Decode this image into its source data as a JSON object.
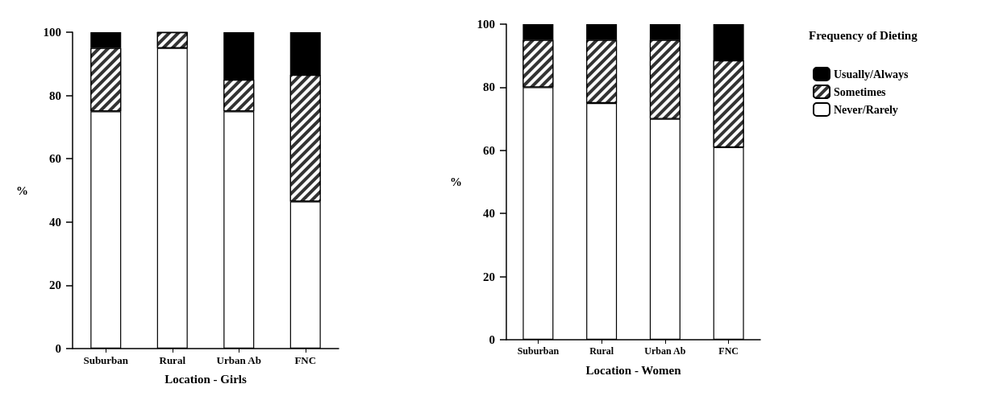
{
  "chart_data": [
    {
      "type": "bar",
      "stacked": true,
      "xlabel": "Location - Girls",
      "ylabel": "%",
      "categories": [
        "Suburban",
        "Rural",
        "Urban Ab",
        "FNC"
      ],
      "series": [
        {
          "color": "#ffffff",
          "values": [
            75,
            95,
            75,
            46.5
          ]
        },
        {
          "color": "#333333",
          "values": [
            20,
            5,
            10,
            40
          ]
        },
        {
          "color": "#000000",
          "values": [
            5,
            0,
            15,
            13.5
          ]
        }
      ],
      "ylim": [
        0,
        100
      ],
      "yticks": [
        0,
        20,
        40,
        60,
        80,
        100
      ],
      "grid": false,
      "legend": false
    },
    {
      "type": "bar",
      "stacked": true,
      "xlabel": "Location - Women",
      "ylabel": "%",
      "legend_title": "Frequency of Dieting",
      "categories": [
        "Suburban",
        "Rural",
        "Urban Ab",
        "FNC"
      ],
      "series": [
        {
          "name": "Never/Rarely",
          "color": "#ffffff",
          "values": [
            80,
            75,
            70,
            61
          ]
        },
        {
          "name": "Sometimes",
          "color": "#333333",
          "values": [
            15,
            20,
            25,
            27.5
          ]
        },
        {
          "name": "Usually/Always",
          "color": "#000000",
          "values": [
            5,
            5,
            5,
            11.5
          ]
        }
      ],
      "ylim": [
        0,
        100
      ],
      "yticks": [
        0,
        20,
        40,
        60,
        80,
        100
      ],
      "grid": false,
      "legend": "right"
    }
  ]
}
